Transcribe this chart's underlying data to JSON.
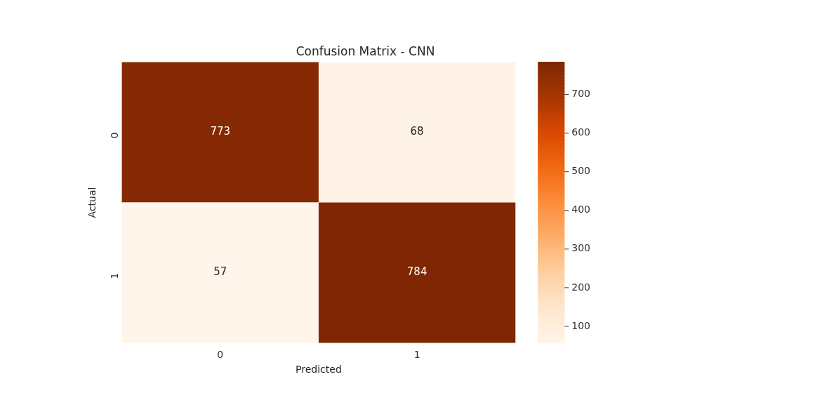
{
  "chart_data": {
    "type": "heatmap",
    "title": "Confusion Matrix - CNN",
    "xlabel": "Predicted",
    "ylabel": "Actual",
    "categories": [
      "0",
      "1"
    ],
    "y_categories": [
      "0",
      "1"
    ],
    "cells": [
      [
        773,
        68
      ],
      [
        57,
        784
      ]
    ],
    "clim": [
      57,
      784
    ],
    "data_labels": true,
    "cticks": [
      100,
      200,
      300,
      400,
      500,
      600,
      700
    ]
  }
}
